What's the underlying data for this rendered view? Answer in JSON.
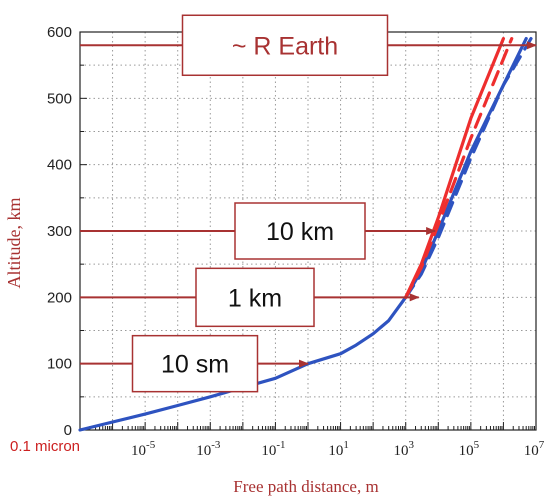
{
  "chart_data": {
    "type": "line",
    "xlabel": "Free path distance, m",
    "ylabel": "Altitude, km",
    "x_scale": "log",
    "xlim": [
      1e-07,
      10000000.0
    ],
    "ylim": [
      0,
      600
    ],
    "x_ticks": [
      {
        "base": "10",
        "exp": "-5"
      },
      {
        "base": "10",
        "exp": "-3"
      },
      {
        "base": "10",
        "exp": "-1"
      },
      {
        "base": "10",
        "exp": "1"
      },
      {
        "base": "10",
        "exp": "3"
      },
      {
        "base": "10",
        "exp": "5"
      },
      {
        "base": "10",
        "exp": "7"
      }
    ],
    "y_ticks": [
      "0",
      "100",
      "200",
      "300",
      "400",
      "500",
      "600"
    ],
    "grid": true,
    "colors": {
      "red": "#ee2e2e",
      "blue": "#2e53c0",
      "arrow": "#a83232",
      "axis_label": "#a83232",
      "corner_label": "#cc2020"
    },
    "corner_label": "0.1 micron",
    "series": [
      {
        "color": "#2e53c0",
        "style": "solid",
        "x": [
          1e-07,
          1e-06,
          1e-05,
          0.0001,
          0.001,
          0.01,
          0.1,
          1,
          10,
          30,
          100,
          300,
          1000,
          3000,
          10000,
          100000,
          1000000.0,
          5000000.0
        ],
        "y": [
          0,
          12,
          24,
          37,
          50,
          64,
          78,
          100,
          115,
          128,
          145,
          165,
          200,
          240,
          300,
          420,
          520,
          590
        ]
      },
      {
        "color": "#2e53c0",
        "style": "dashed",
        "x": [
          1000,
          3000,
          10000,
          100000,
          1000000.0,
          7000000.0
        ],
        "y": [
          200,
          235,
          290,
          410,
          520,
          590
        ]
      },
      {
        "color": "#ee2e2e",
        "style": "solid",
        "x": [
          1000,
          3000,
          10000,
          100000,
          1000000.0
        ],
        "y": [
          200,
          250,
          320,
          470,
          590
        ]
      },
      {
        "color": "#ee2e2e",
        "style": "dashed",
        "x": [
          1000,
          3000,
          10000,
          100000,
          1800000.0
        ],
        "y": [
          200,
          245,
          310,
          440,
          590
        ]
      }
    ],
    "annotations": [
      {
        "text": "~ R Earth",
        "altitude": 580
      },
      {
        "text": "10 km",
        "altitude": 300
      },
      {
        "text": "1 km",
        "altitude": 200
      },
      {
        "text": "10 sm",
        "altitude": 100
      }
    ]
  }
}
